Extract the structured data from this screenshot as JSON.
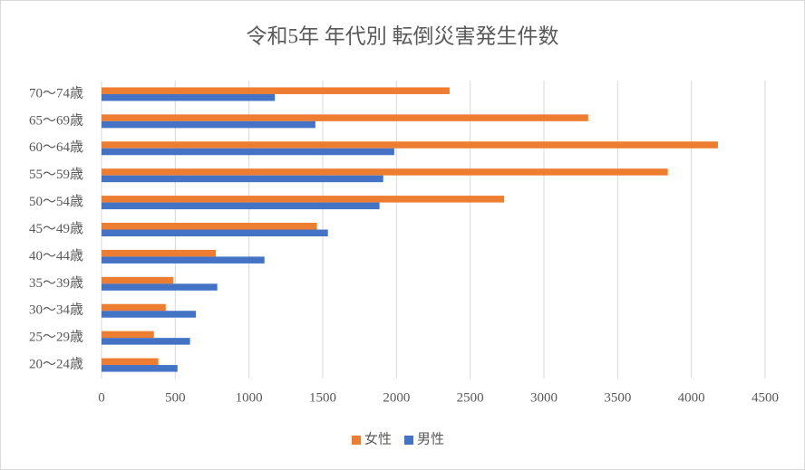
{
  "chart_data": {
    "type": "hbar",
    "title": "令和5年 年代別 転倒災害発生件数",
    "categories": [
      "70～74歳",
      "65～69歳",
      "60～64歳",
      "55～59歳",
      "50～54歳",
      "45～49歳",
      "40～44歳",
      "35～39歳",
      "30～34歳",
      "25～29歳",
      "20～24歳"
    ],
    "series": [
      {
        "name": "女性",
        "color": "#ed7d31",
        "values": [
          2360,
          3300,
          4180,
          3840,
          2730,
          1460,
          775,
          485,
          435,
          355,
          385
        ]
      },
      {
        "name": "男性",
        "color": "#4472c4",
        "values": [
          1175,
          1450,
          1985,
          1910,
          1885,
          1535,
          1105,
          785,
          640,
          600,
          515
        ]
      }
    ],
    "xlim": [
      0,
      4500
    ],
    "xticks": [
      0,
      500,
      1000,
      1500,
      2000,
      2500,
      3000,
      3500,
      4000,
      4500
    ],
    "grid": true,
    "legend": "bottom"
  }
}
